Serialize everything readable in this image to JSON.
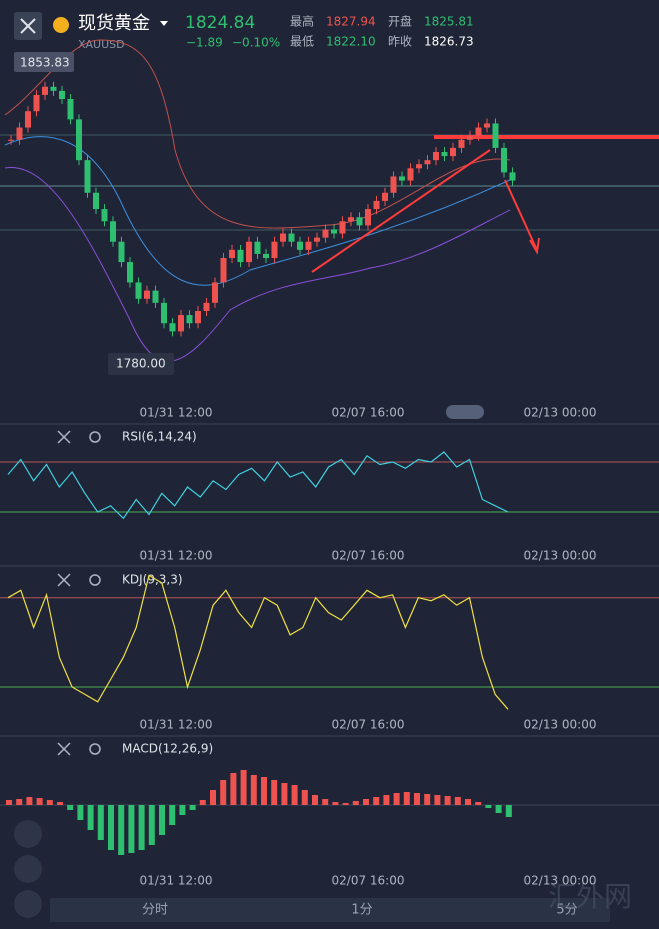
{
  "header": {
    "title": "现货黄金",
    "symbol": "XAUUSD",
    "price": "1824.84",
    "change": "−1.89",
    "change_pct": "−0.10%",
    "stats": [
      {
        "label": "最高",
        "value": "1827.94"
      },
      {
        "label": "开盘",
        "value": "1825.81"
      },
      {
        "label": "最低",
        "value": "1822.10"
      },
      {
        "label": "昨收",
        "value": "1826.73"
      }
    ]
  },
  "chart_data": {
    "type": "candlestick",
    "high_label": "1853.83",
    "low_label": "1780.00",
    "ylim": [
      1780,
      1853.83
    ],
    "closes": [
      1835,
      1838,
      1842,
      1846,
      1848,
      1847,
      1845,
      1840,
      1830,
      1822,
      1818,
      1815,
      1810,
      1805,
      1800,
      1796,
      1798,
      1795,
      1790,
      1788,
      1792,
      1790,
      1793,
      1795,
      1800,
      1806,
      1808,
      1805,
      1810,
      1807,
      1806,
      1810,
      1812,
      1810,
      1808,
      1810,
      1811,
      1813,
      1812,
      1815,
      1816,
      1814,
      1818,
      1820,
      1822,
      1826,
      1825,
      1828,
      1829,
      1830,
      1832,
      1831,
      1833,
      1835,
      1836,
      1838,
      1839,
      1833,
      1827,
      1825
    ],
    "xlabels": [
      "01/31 12:00",
      "02/07 16:00",
      "02/13 00:00"
    ]
  },
  "indicators": [
    {
      "name": "RSI(6,14,24)",
      "ylim": [
        0,
        100
      ],
      "levels": [
        70,
        30
      ],
      "values": [
        60,
        72,
        55,
        68,
        50,
        62,
        45,
        30,
        35,
        25,
        40,
        28,
        45,
        35,
        50,
        42,
        55,
        48,
        60,
        65,
        55,
        70,
        58,
        62,
        50,
        66,
        72,
        60,
        75,
        68,
        70,
        65,
        72,
        70,
        78,
        66,
        72,
        40,
        35,
        30
      ]
    },
    {
      "name": "KDJ(9,3,3)",
      "ylim": [
        0,
        100
      ],
      "levels": [
        80,
        20
      ],
      "values": [
        80,
        85,
        60,
        82,
        40,
        20,
        15,
        10,
        25,
        40,
        60,
        95,
        90,
        60,
        20,
        45,
        75,
        85,
        70,
        60,
        80,
        75,
        55,
        60,
        80,
        70,
        65,
        75,
        85,
        80,
        82,
        60,
        80,
        78,
        82,
        75,
        80,
        40,
        15,
        5
      ]
    },
    {
      "name": "MACD(12,26,9)",
      "histogram": [
        0.5,
        0.6,
        0.8,
        0.7,
        0.5,
        0.3,
        -0.5,
        -1.5,
        -2.5,
        -3.5,
        -4.5,
        -5,
        -4.8,
        -4.5,
        -4,
        -3,
        -2,
        -1,
        -0.5,
        0.5,
        1.5,
        2.5,
        3.2,
        3.5,
        3,
        2.8,
        2.5,
        2.2,
        2,
        1.5,
        1,
        0.6,
        0.3,
        0.2,
        0.4,
        0.6,
        0.8,
        1,
        1.2,
        1.3,
        1.2,
        1.1,
        1,
        0.9,
        0.8,
        0.6,
        0.3,
        -0.3,
        -0.8,
        -1.2
      ]
    }
  ],
  "tabs": [
    "分时",
    "1分",
    "5分"
  ],
  "watermark": "汇外网"
}
